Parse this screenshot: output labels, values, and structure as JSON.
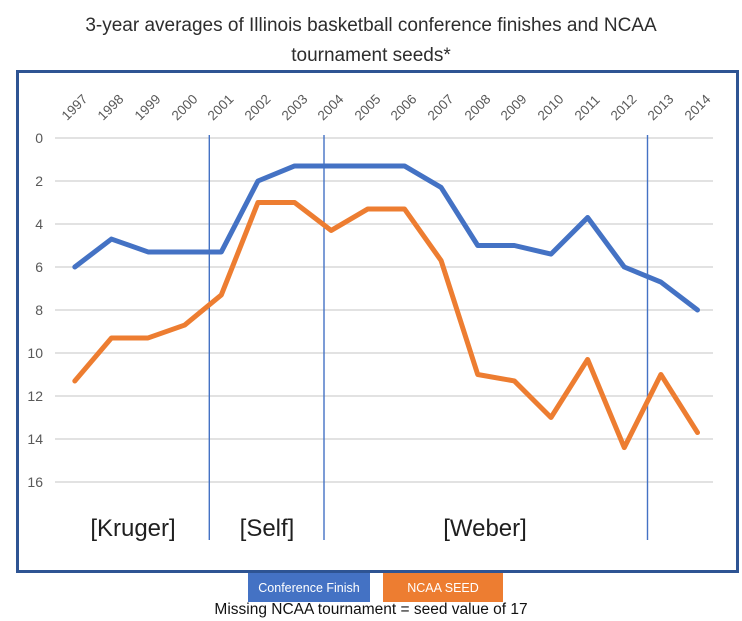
{
  "title": {
    "line1": "3-year averages of Illinois basketball conference finishes and NCAA",
    "line2": "tournament seeds*"
  },
  "footnote": "Missing NCAA tournament = seed value of 17",
  "legend": {
    "items": [
      {
        "label": "Conference Finish",
        "color": "#4472C4"
      },
      {
        "label": "NCAA SEED",
        "color": "#ED7D31"
      }
    ]
  },
  "coach_labels": [
    "[Kruger]",
    "[Self]",
    "[Weber]"
  ],
  "colors": {
    "conference_finish_line": "#4472C4",
    "ncaa_seed_line": "#ED7D31",
    "gridline": "#D9D9D9",
    "divider_line": "#4472C4",
    "chart_border": "#2E5493",
    "axis_text": "#595959"
  },
  "chart_data": {
    "type": "line",
    "x": [
      1997,
      1998,
      1999,
      2000,
      2001,
      2002,
      2003,
      2004,
      2005,
      2006,
      2007,
      2008,
      2009,
      2010,
      2011,
      2012,
      2013,
      2014
    ],
    "series": [
      {
        "name": "Conference Finish",
        "color": "#4472C4",
        "values": [
          6,
          4.7,
          5.3,
          5.3,
          5.3,
          2,
          1.3,
          1.3,
          1.3,
          1.3,
          2.3,
          5,
          5,
          5.4,
          3.7,
          6,
          6.7,
          8
        ]
      },
      {
        "name": "NCAA SEED",
        "color": "#ED7D31",
        "values": [
          11.3,
          9.3,
          9.3,
          8.7,
          7.3,
          3,
          3,
          4.3,
          3.3,
          3.3,
          5.7,
          11,
          11.3,
          13,
          10.3,
          14.4,
          11,
          13.7
        ]
      }
    ],
    "y_axis": {
      "ticks": [
        0,
        2,
        4,
        6,
        8,
        10,
        12,
        14,
        16
      ],
      "inverted": true,
      "min": 0,
      "max": 16
    },
    "x_axis": {
      "tick_labels_rotated_degrees": 45,
      "position": "top"
    },
    "grid": true,
    "legend_position": "bottom",
    "coach_dividers_after_year": [
      2000,
      2003,
      2012
    ],
    "title": "3-year averages of Illinois basketball conference finishes and NCAA tournament seeds*"
  }
}
